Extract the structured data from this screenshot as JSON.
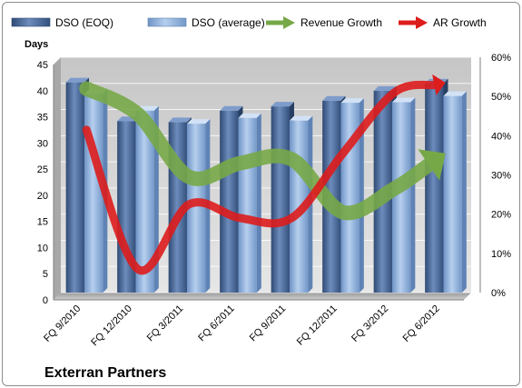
{
  "chart_data": {
    "type": "bar",
    "title": "Exterran Partners",
    "ylabel": "Days",
    "categories": [
      "FQ 9/2010",
      "FQ 12/2010",
      "FQ 3/2011",
      "FQ 6/2011",
      "FQ 9/2011",
      "FQ 12/2011",
      "FQ 3/2012",
      "FQ 6/2012"
    ],
    "ylim": [
      0,
      45
    ],
    "y_ticks": [
      "0",
      "5",
      "10",
      "15",
      "20",
      "25",
      "30",
      "35",
      "40",
      "45"
    ],
    "y2lim": [
      0,
      0.6
    ],
    "y2_ticks": [
      "0%",
      "10%",
      "20%",
      "30%",
      "40%",
      "50%",
      "60%"
    ],
    "grid": true,
    "legend_position": "top",
    "series": [
      {
        "name": "DSO (EOQ)",
        "kind": "bar",
        "axis": "left",
        "color": "#4f6e9e",
        "values": [
          40.2,
          32.8,
          32.6,
          34.8,
          35.6,
          36.7,
          38.6,
          40.0
        ]
      },
      {
        "name": "DSO (average)",
        "kind": "bar",
        "axis": "left",
        "color": "#8fb1de",
        "values": [
          38.0,
          34.8,
          32.3,
          33.4,
          32.9,
          36.3,
          36.4,
          37.6
        ]
      },
      {
        "name": "Revenue Growth",
        "kind": "arrow-line",
        "axis": "right",
        "color": "#77a847",
        "values": [
          0.52,
          0.455,
          0.295,
          0.33,
          0.34,
          0.205,
          0.265,
          0.355
        ]
      },
      {
        "name": "AR Growth",
        "kind": "arrow-line",
        "axis": "right",
        "color": "#dd1c1c",
        "values": [
          0.415,
          0.06,
          0.225,
          0.19,
          0.19,
          0.355,
          0.51,
          0.535
        ]
      }
    ]
  }
}
